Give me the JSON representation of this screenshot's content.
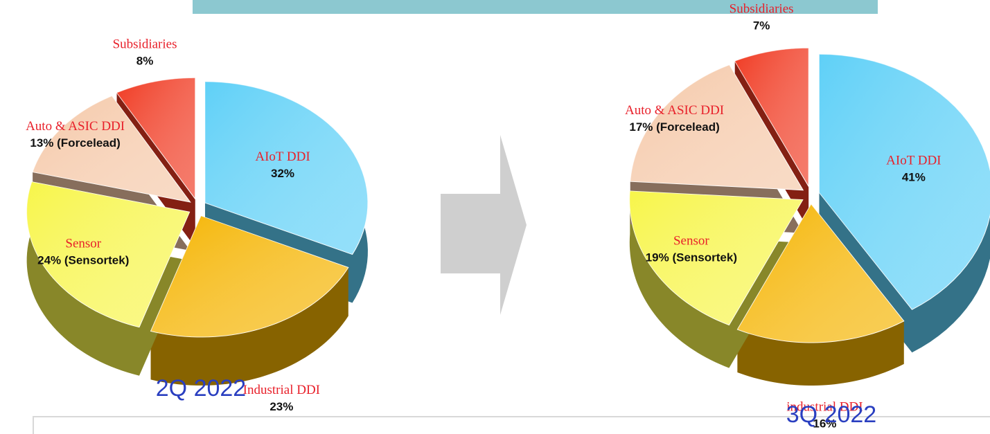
{
  "chart_data": [
    {
      "type": "pie",
      "title": "2Q 2022",
      "categories": [
        "AIoT DDI",
        "Industrial DDI",
        "Sensor",
        "Auto & ASIC DDI",
        "Subsidiaries"
      ],
      "values": [
        32,
        23,
        24,
        13,
        8
      ],
      "value_labels": [
        "32%",
        "23%",
        "24% (Sensortek)",
        "13% (Forcelead)",
        "8%"
      ],
      "colors": [
        "#5fd0f7",
        "#f5b400",
        "#f7f54a",
        "#f5c8a8",
        "#f03a22"
      ]
    },
    {
      "type": "pie",
      "title": "3Q 2022",
      "categories": [
        "AIoT DDI",
        "industrial DDI",
        "Sensor",
        "Auto & ASIC DDI",
        "Subsidiaries"
      ],
      "values": [
        41,
        16,
        19,
        17,
        7
      ],
      "value_labels": [
        "41%",
        "16%",
        "19% (Sensortek)",
        "17% (Forcelead)",
        "7%"
      ],
      "colors": [
        "#5fd0f7",
        "#f5b400",
        "#f7f54a",
        "#f5c8a8",
        "#f03a22"
      ]
    }
  ]
}
